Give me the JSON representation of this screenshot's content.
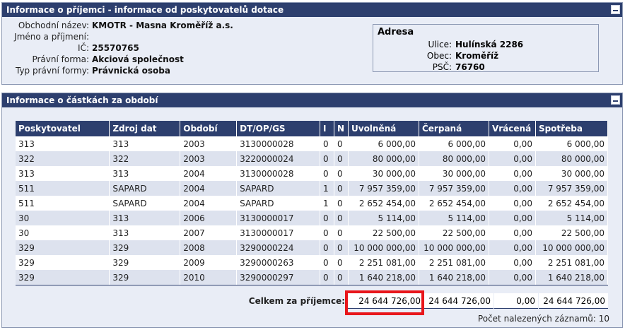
{
  "recipient_panel": {
    "title": "Informace o příjemci - informace od poskytovatelů dotace",
    "fields": [
      {
        "label": "Obchodní název:",
        "value": "KMOTR - Masna Kroměříž a.s."
      },
      {
        "label": "Jméno a příjmení:",
        "value": ""
      },
      {
        "label": "IČ:",
        "value": "25570765"
      },
      {
        "label": "Právní forma:",
        "value": "Akciová společnost"
      },
      {
        "label": "Typ právní formy:",
        "value": "Právnická osoba"
      }
    ],
    "address": {
      "title": "Adresa",
      "fields": [
        {
          "label": "Ulice:",
          "value": "Hulínská 2286"
        },
        {
          "label": "Obec:",
          "value": "Kroměříž"
        },
        {
          "label": "PSČ:",
          "value": "76760"
        }
      ]
    }
  },
  "amounts_panel": {
    "title": "Informace o částkách za období",
    "columns": [
      "Poskytovatel",
      "Zdroj dat",
      "Období",
      "DT/OP/GS",
      "I",
      "N",
      "Uvolněná",
      "Čerpaná",
      "Vrácená",
      "Spotřeba"
    ],
    "rows": [
      [
        "313",
        "313",
        "2003",
        "3130000028",
        "0",
        "0",
        "6 000,00",
        "6 000,00",
        "0,00",
        "6 000,00"
      ],
      [
        "322",
        "322",
        "2003",
        "3220000024",
        "0",
        "0",
        "80 000,00",
        "80 000,00",
        "0,00",
        "80 000,00"
      ],
      [
        "313",
        "313",
        "2004",
        "3130000028",
        "0",
        "0",
        "30 000,00",
        "30 000,00",
        "0,00",
        "30 000,00"
      ],
      [
        "511",
        "SAPARD",
        "2004",
        "SAPARD",
        "1",
        "0",
        "7 957 359,00",
        "7 957 359,00",
        "0,00",
        "7 957 359,00"
      ],
      [
        "511",
        "SAPARD",
        "2004",
        "SAPARD",
        "1",
        "0",
        "2 652 454,00",
        "2 652 454,00",
        "0,00",
        "2 652 454,00"
      ],
      [
        "30",
        "313",
        "2006",
        "3130000017",
        "0",
        "0",
        "5 114,00",
        "5 114,00",
        "0,00",
        "5 114,00"
      ],
      [
        "30",
        "313",
        "2007",
        "3130000017",
        "0",
        "0",
        "22 500,00",
        "22 500,00",
        "0,00",
        "22 500,00"
      ],
      [
        "329",
        "329",
        "2008",
        "3290000224",
        "0",
        "0",
        "10 000 000,00",
        "10 000 000,00",
        "0,00",
        "10 000 000,00"
      ],
      [
        "329",
        "329",
        "2009",
        "3290000263",
        "0",
        "0",
        "2 251 081,00",
        "2 251 081,00",
        "0,00",
        "2 251 081,00"
      ],
      [
        "329",
        "329",
        "2010",
        "3290000297",
        "0",
        "0",
        "1 640 218,00",
        "1 640 218,00",
        "0,00",
        "1 640 218,00"
      ]
    ],
    "totals": {
      "label": "Celkem za příjemce:",
      "uvolnena": "24 644 726,00",
      "cerpana": "24 644 726,00",
      "vracena": "0,00",
      "spotreba": "24 644 726,00"
    },
    "record_count": "Počet nalezených záznamů: 10"
  },
  "colors": {
    "header_bg": "#2d3f6e",
    "panel_bg": "#e9edf6",
    "highlight": "#e8161b"
  }
}
